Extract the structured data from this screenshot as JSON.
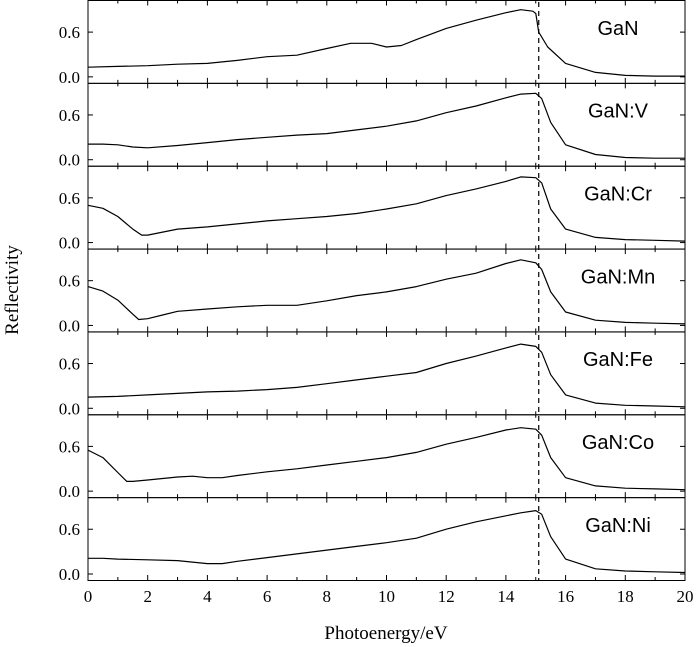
{
  "chart_data": {
    "type": "line",
    "xlabel": "Photoenergy/eV",
    "ylabel": "Reflectivity",
    "xlim": [
      0,
      20
    ],
    "ylim": [
      0,
      0.95
    ],
    "x_ticks": [
      "0",
      "2",
      "4",
      "6",
      "8",
      "10",
      "12",
      "14",
      "16",
      "18",
      "20"
    ],
    "y_ticks": [
      "0.0",
      "0.6"
    ],
    "reference_line_x": 15.1,
    "grid": false,
    "legend": "none",
    "panels": [
      {
        "label": "GaN",
        "points": [
          [
            0,
            0.13
          ],
          [
            1,
            0.14
          ],
          [
            2,
            0.15
          ],
          [
            3,
            0.17
          ],
          [
            4,
            0.18
          ],
          [
            5,
            0.22
          ],
          [
            6,
            0.27
          ],
          [
            7,
            0.29
          ],
          [
            8,
            0.38
          ],
          [
            8.8,
            0.45
          ],
          [
            9.5,
            0.45
          ],
          [
            10,
            0.4
          ],
          [
            10.5,
            0.42
          ],
          [
            11,
            0.5
          ],
          [
            12,
            0.65
          ],
          [
            13,
            0.76
          ],
          [
            14,
            0.86
          ],
          [
            14.5,
            0.9
          ],
          [
            14.9,
            0.88
          ],
          [
            15,
            0.85
          ],
          [
            15.1,
            0.6
          ],
          [
            15.4,
            0.4
          ],
          [
            16,
            0.18
          ],
          [
            17,
            0.06
          ],
          [
            18,
            0.02
          ],
          [
            19,
            0.01
          ],
          [
            20,
            0.01
          ]
        ]
      },
      {
        "label": "GaN:V",
        "points": [
          [
            0,
            0.21
          ],
          [
            0.5,
            0.21
          ],
          [
            1,
            0.2
          ],
          [
            1.5,
            0.17
          ],
          [
            2,
            0.16
          ],
          [
            3,
            0.19
          ],
          [
            4,
            0.23
          ],
          [
            5,
            0.27
          ],
          [
            6,
            0.3
          ],
          [
            7,
            0.33
          ],
          [
            8,
            0.35
          ],
          [
            9,
            0.4
          ],
          [
            10,
            0.45
          ],
          [
            11,
            0.52
          ],
          [
            12,
            0.63
          ],
          [
            13,
            0.72
          ],
          [
            14,
            0.83
          ],
          [
            14.5,
            0.88
          ],
          [
            15,
            0.89
          ],
          [
            15.2,
            0.82
          ],
          [
            15.5,
            0.5
          ],
          [
            16,
            0.2
          ],
          [
            17,
            0.07
          ],
          [
            18,
            0.03
          ],
          [
            19,
            0.02
          ],
          [
            20,
            0.02
          ]
        ]
      },
      {
        "label": "GaN:Cr",
        "points": [
          [
            0,
            0.5
          ],
          [
            0.5,
            0.46
          ],
          [
            1,
            0.35
          ],
          [
            1.5,
            0.18
          ],
          [
            1.8,
            0.1
          ],
          [
            2,
            0.1
          ],
          [
            2.5,
            0.14
          ],
          [
            3,
            0.18
          ],
          [
            4,
            0.21
          ],
          [
            5,
            0.25
          ],
          [
            6,
            0.29
          ],
          [
            7,
            0.32
          ],
          [
            8,
            0.35
          ],
          [
            9,
            0.39
          ],
          [
            10,
            0.45
          ],
          [
            11,
            0.52
          ],
          [
            12,
            0.63
          ],
          [
            13,
            0.72
          ],
          [
            14,
            0.82
          ],
          [
            14.5,
            0.88
          ],
          [
            15,
            0.87
          ],
          [
            15.2,
            0.8
          ],
          [
            15.5,
            0.45
          ],
          [
            16,
            0.18
          ],
          [
            17,
            0.07
          ],
          [
            18,
            0.04
          ],
          [
            19,
            0.03
          ],
          [
            20,
            0.02
          ]
        ]
      },
      {
        "label": "GaN:Mn",
        "points": [
          [
            0,
            0.52
          ],
          [
            0.5,
            0.46
          ],
          [
            1,
            0.34
          ],
          [
            1.5,
            0.15
          ],
          [
            1.7,
            0.08
          ],
          [
            2,
            0.09
          ],
          [
            2.5,
            0.14
          ],
          [
            3,
            0.19
          ],
          [
            4,
            0.22
          ],
          [
            5,
            0.25
          ],
          [
            6,
            0.27
          ],
          [
            7,
            0.27
          ],
          [
            8,
            0.33
          ],
          [
            9,
            0.4
          ],
          [
            10,
            0.45
          ],
          [
            11,
            0.52
          ],
          [
            12,
            0.62
          ],
          [
            13,
            0.7
          ],
          [
            14,
            0.83
          ],
          [
            14.5,
            0.88
          ],
          [
            15,
            0.84
          ],
          [
            15.2,
            0.75
          ],
          [
            15.5,
            0.45
          ],
          [
            16,
            0.18
          ],
          [
            17,
            0.07
          ],
          [
            18,
            0.04
          ],
          [
            19,
            0.03
          ],
          [
            20,
            0.02
          ]
        ]
      },
      {
        "label": "GaN:Fe",
        "points": [
          [
            0,
            0.15
          ],
          [
            1,
            0.16
          ],
          [
            2,
            0.18
          ],
          [
            3,
            0.2
          ],
          [
            4,
            0.22
          ],
          [
            5,
            0.23
          ],
          [
            6,
            0.25
          ],
          [
            7,
            0.28
          ],
          [
            8,
            0.33
          ],
          [
            9,
            0.38
          ],
          [
            10,
            0.43
          ],
          [
            11,
            0.48
          ],
          [
            12,
            0.6
          ],
          [
            13,
            0.7
          ],
          [
            14,
            0.81
          ],
          [
            14.5,
            0.86
          ],
          [
            15,
            0.83
          ],
          [
            15.2,
            0.75
          ],
          [
            15.5,
            0.45
          ],
          [
            16,
            0.18
          ],
          [
            17,
            0.07
          ],
          [
            18,
            0.04
          ],
          [
            19,
            0.03
          ],
          [
            20,
            0.02
          ]
        ]
      },
      {
        "label": "GaN:Co",
        "points": [
          [
            0,
            0.55
          ],
          [
            0.5,
            0.45
          ],
          [
            1,
            0.25
          ],
          [
            1.3,
            0.13
          ],
          [
            1.5,
            0.13
          ],
          [
            2,
            0.15
          ],
          [
            3,
            0.19
          ],
          [
            3.5,
            0.2
          ],
          [
            4,
            0.18
          ],
          [
            4.5,
            0.18
          ],
          [
            5,
            0.21
          ],
          [
            6,
            0.26
          ],
          [
            7,
            0.3
          ],
          [
            8,
            0.35
          ],
          [
            9,
            0.4
          ],
          [
            10,
            0.45
          ],
          [
            11,
            0.52
          ],
          [
            12,
            0.63
          ],
          [
            13,
            0.72
          ],
          [
            14,
            0.82
          ],
          [
            14.5,
            0.85
          ],
          [
            15,
            0.83
          ],
          [
            15.2,
            0.75
          ],
          [
            15.5,
            0.45
          ],
          [
            16,
            0.18
          ],
          [
            17,
            0.07
          ],
          [
            18,
            0.04
          ],
          [
            19,
            0.03
          ],
          [
            20,
            0.02
          ]
        ]
      },
      {
        "label": "GaN:Ni",
        "points": [
          [
            0,
            0.21
          ],
          [
            0.5,
            0.21
          ],
          [
            1,
            0.2
          ],
          [
            2,
            0.19
          ],
          [
            3,
            0.18
          ],
          [
            3.5,
            0.16
          ],
          [
            4,
            0.14
          ],
          [
            4.5,
            0.14
          ],
          [
            5,
            0.17
          ],
          [
            6,
            0.22
          ],
          [
            7,
            0.27
          ],
          [
            8,
            0.32
          ],
          [
            9,
            0.37
          ],
          [
            10,
            0.42
          ],
          [
            11,
            0.48
          ],
          [
            12,
            0.6
          ],
          [
            13,
            0.7
          ],
          [
            14,
            0.78
          ],
          [
            14.5,
            0.82
          ],
          [
            15,
            0.85
          ],
          [
            15.2,
            0.8
          ],
          [
            15.5,
            0.5
          ],
          [
            16,
            0.2
          ],
          [
            17,
            0.07
          ],
          [
            18,
            0.04
          ],
          [
            19,
            0.03
          ],
          [
            20,
            0.02
          ]
        ]
      }
    ]
  }
}
